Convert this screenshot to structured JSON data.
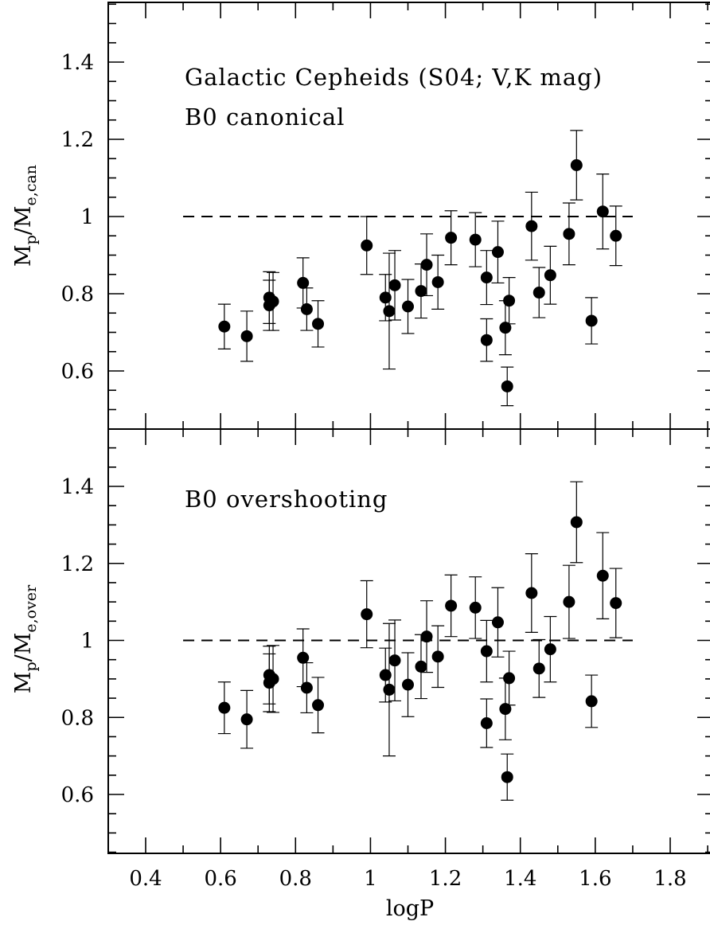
{
  "chart_data": [
    {
      "type": "scatter",
      "panel": "top",
      "annotations": [
        "Galactic Cepheids (S04; V,K mag)",
        "B0 canonical"
      ],
      "ylabel": {
        "main": "M",
        "sub1": "p",
        "sep": "/M",
        "sub2": "e,can"
      },
      "xlabel": "",
      "xlim": [
        0.3,
        1.9
      ],
      "ylim": [
        0.45,
        1.55
      ],
      "yticks": [
        0.6,
        0.8,
        1,
        1.2,
        1.4
      ],
      "ytick_labels": [
        "0.6",
        "0.8",
        "1",
        "1.2",
        "1.4"
      ],
      "reference_line": {
        "y": 1.0,
        "x_range": [
          0.5,
          1.7
        ],
        "style": "dashed"
      },
      "points": [
        {
          "x": 0.61,
          "y": 0.715,
          "err": 0.058
        },
        {
          "x": 0.67,
          "y": 0.69,
          "err": 0.065
        },
        {
          "x": 0.73,
          "y": 0.79,
          "err": 0.067
        },
        {
          "x": 0.73,
          "y": 0.77,
          "err": 0.065
        },
        {
          "x": 0.74,
          "y": 0.78,
          "err": 0.075
        },
        {
          "x": 0.82,
          "y": 0.828,
          "err": 0.065
        },
        {
          "x": 0.83,
          "y": 0.76,
          "err": 0.055
        },
        {
          "x": 0.86,
          "y": 0.722,
          "err": 0.06
        },
        {
          "x": 0.99,
          "y": 0.925,
          "err": 0.075
        },
        {
          "x": 1.04,
          "y": 0.79,
          "err": 0.06
        },
        {
          "x": 1.05,
          "y": 0.755,
          "err": 0.15
        },
        {
          "x": 1.065,
          "y": 0.822,
          "err": 0.09
        },
        {
          "x": 1.1,
          "y": 0.767,
          "err": 0.07
        },
        {
          "x": 1.135,
          "y": 0.807,
          "err": 0.07
        },
        {
          "x": 1.15,
          "y": 0.875,
          "err": 0.08
        },
        {
          "x": 1.18,
          "y": 0.83,
          "err": 0.07
        },
        {
          "x": 1.215,
          "y": 0.945,
          "err": 0.07
        },
        {
          "x": 1.28,
          "y": 0.94,
          "err": 0.07
        },
        {
          "x": 1.31,
          "y": 0.842,
          "err": 0.07
        },
        {
          "x": 1.31,
          "y": 0.68,
          "err": 0.055
        },
        {
          "x": 1.34,
          "y": 0.908,
          "err": 0.08
        },
        {
          "x": 1.36,
          "y": 0.712,
          "err": 0.07
        },
        {
          "x": 1.37,
          "y": 0.782,
          "err": 0.06
        },
        {
          "x": 1.365,
          "y": 0.56,
          "err": 0.05
        },
        {
          "x": 1.43,
          "y": 0.975,
          "err": 0.088
        },
        {
          "x": 1.45,
          "y": 0.803,
          "err": 0.065
        },
        {
          "x": 1.48,
          "y": 0.848,
          "err": 0.075
        },
        {
          "x": 1.53,
          "y": 0.955,
          "err": 0.08
        },
        {
          "x": 1.55,
          "y": 1.133,
          "err": 0.09
        },
        {
          "x": 1.59,
          "y": 0.73,
          "err": 0.06
        },
        {
          "x": 1.62,
          "y": 1.013,
          "err": 0.097
        },
        {
          "x": 1.655,
          "y": 0.95,
          "err": 0.077
        }
      ]
    },
    {
      "type": "scatter",
      "panel": "bottom",
      "annotations": [
        "B0 overshooting"
      ],
      "ylabel": {
        "main": "M",
        "sub1": "p",
        "sep": "/M",
        "sub2": "e,over"
      },
      "xlabel": "logP",
      "xlim": [
        0.3,
        1.9
      ],
      "ylim": [
        0.45,
        1.55
      ],
      "xticks": [
        0.4,
        0.6,
        0.8,
        1,
        1.2,
        1.4,
        1.6,
        1.8
      ],
      "xtick_labels": [
        "0.4",
        "0.6",
        "0.8",
        "1",
        "1.2",
        "1.4",
        "1.6",
        "1.8"
      ],
      "yticks": [
        0.6,
        0.8,
        1,
        1.2,
        1.4
      ],
      "ytick_labels": [
        "0.6",
        "0.8",
        "1",
        "1.2",
        "1.4"
      ],
      "reference_line": {
        "y": 1.0,
        "x_range": [
          0.5,
          1.7
        ],
        "style": "dashed"
      },
      "points": [
        {
          "x": 0.61,
          "y": 0.825,
          "err": 0.067
        },
        {
          "x": 0.67,
          "y": 0.795,
          "err": 0.075
        },
        {
          "x": 0.73,
          "y": 0.91,
          "err": 0.075
        },
        {
          "x": 0.73,
          "y": 0.89,
          "err": 0.075
        },
        {
          "x": 0.74,
          "y": 0.9,
          "err": 0.087
        },
        {
          "x": 0.82,
          "y": 0.955,
          "err": 0.075
        },
        {
          "x": 0.83,
          "y": 0.877,
          "err": 0.065
        },
        {
          "x": 0.86,
          "y": 0.832,
          "err": 0.072
        },
        {
          "x": 0.99,
          "y": 1.068,
          "err": 0.087
        },
        {
          "x": 1.04,
          "y": 0.91,
          "err": 0.07
        },
        {
          "x": 1.05,
          "y": 0.872,
          "err": 0.172
        },
        {
          "x": 1.065,
          "y": 0.948,
          "err": 0.105
        },
        {
          "x": 1.1,
          "y": 0.885,
          "err": 0.083
        },
        {
          "x": 1.135,
          "y": 0.932,
          "err": 0.083
        },
        {
          "x": 1.15,
          "y": 1.01,
          "err": 0.093
        },
        {
          "x": 1.18,
          "y": 0.958,
          "err": 0.08
        },
        {
          "x": 1.215,
          "y": 1.09,
          "err": 0.08
        },
        {
          "x": 1.28,
          "y": 1.085,
          "err": 0.08
        },
        {
          "x": 1.31,
          "y": 0.972,
          "err": 0.08
        },
        {
          "x": 1.31,
          "y": 0.785,
          "err": 0.063
        },
        {
          "x": 1.34,
          "y": 1.047,
          "err": 0.09
        },
        {
          "x": 1.36,
          "y": 0.822,
          "err": 0.08
        },
        {
          "x": 1.37,
          "y": 0.902,
          "err": 0.07
        },
        {
          "x": 1.365,
          "y": 0.645,
          "err": 0.06
        },
        {
          "x": 1.43,
          "y": 1.123,
          "err": 0.102
        },
        {
          "x": 1.45,
          "y": 0.927,
          "err": 0.075
        },
        {
          "x": 1.48,
          "y": 0.977,
          "err": 0.085
        },
        {
          "x": 1.53,
          "y": 1.1,
          "err": 0.095
        },
        {
          "x": 1.55,
          "y": 1.307,
          "err": 0.105
        },
        {
          "x": 1.59,
          "y": 0.842,
          "err": 0.068
        },
        {
          "x": 1.62,
          "y": 1.168,
          "err": 0.112
        },
        {
          "x": 1.655,
          "y": 1.097,
          "err": 0.09
        }
      ]
    }
  ]
}
